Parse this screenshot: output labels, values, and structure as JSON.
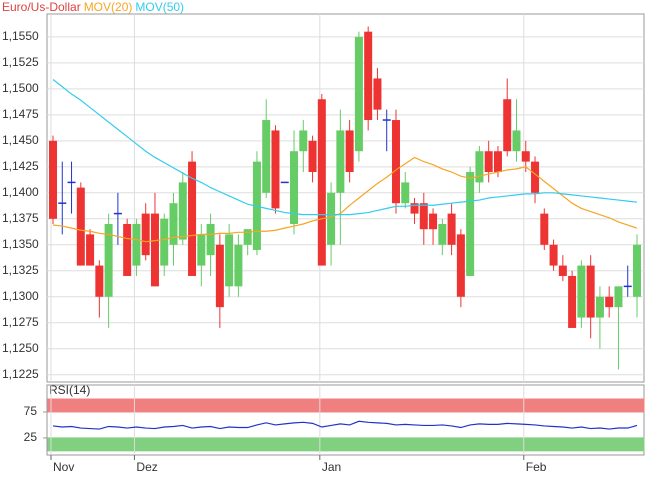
{
  "chart_data": [
    {
      "type": "candlestick",
      "title": "Euro/Us-Dollar",
      "title_color": "#e04040",
      "categories": [
        "Nov",
        null,
        null,
        null,
        null,
        null,
        null,
        null,
        null,
        "Dez",
        null,
        null,
        null,
        null,
        null,
        null,
        null,
        null,
        null,
        null,
        null,
        null,
        null,
        null,
        null,
        null,
        null,
        null,
        null,
        "Jan",
        null,
        null,
        null,
        null,
        null,
        null,
        null,
        null,
        null,
        null,
        null,
        null,
        null,
        null,
        null,
        null,
        null,
        null,
        null,
        null,
        null,
        "Feb",
        null,
        null,
        null,
        null,
        null,
        null,
        null,
        null,
        null,
        null,
        null,
        null
      ],
      "open": [
        1.145,
        1.139,
        1.141,
        1.1405,
        1.136,
        1.133,
        1.13,
        1.138,
        1.137,
        1.133,
        1.138,
        1.138,
        1.133,
        1.135,
        1.1355,
        1.143,
        1.133,
        1.134,
        1.135,
        1.131,
        1.131,
        1.135,
        1.1345,
        1.14,
        1.146,
        1.141,
        1.137,
        1.144,
        1.145,
        1.149,
        1.135,
        1.14,
        1.146,
        1.144,
        1.1555,
        1.151,
        1.147,
        1.147,
        1.139,
        1.139,
        1.139,
        1.138,
        1.135,
        1.138,
        1.136,
        1.132,
        1.141,
        1.144,
        1.144,
        1.149,
        1.144,
        1.144,
        1.143,
        1.138,
        1.135,
        1.133,
        1.132,
        1.128,
        1.133,
        1.128,
        1.13,
        1.129,
        1.131,
        1.13
      ],
      "high": [
        1.1455,
        1.143,
        1.143,
        1.141,
        1.1365,
        1.1335,
        1.138,
        1.14,
        1.1375,
        1.1375,
        1.139,
        1.14,
        1.138,
        1.14,
        1.142,
        1.144,
        1.137,
        1.138,
        1.136,
        1.137,
        1.136,
        1.1365,
        1.144,
        1.149,
        1.1465,
        1.141,
        1.146,
        1.147,
        1.1455,
        1.1495,
        1.141,
        1.148,
        1.147,
        1.1555,
        1.156,
        1.152,
        1.148,
        1.148,
        1.142,
        1.1395,
        1.14,
        1.1385,
        1.1375,
        1.139,
        1.1365,
        1.1425,
        1.1445,
        1.145,
        1.1445,
        1.151,
        1.149,
        1.145,
        1.1435,
        1.1385,
        1.1355,
        1.134,
        1.1325,
        1.1335,
        1.134,
        1.131,
        1.131,
        1.131,
        1.133,
        1.136
      ],
      "low": [
        1.137,
        1.136,
        1.138,
        1.133,
        1.133,
        1.128,
        1.127,
        1.135,
        1.132,
        1.132,
        1.1335,
        1.131,
        1.132,
        1.133,
        1.135,
        1.132,
        1.131,
        1.132,
        1.127,
        1.13,
        1.13,
        1.134,
        1.134,
        1.1395,
        1.138,
        1.141,
        1.136,
        1.142,
        1.141,
        1.133,
        1.133,
        1.135,
        1.141,
        1.143,
        1.146,
        1.147,
        1.144,
        1.138,
        1.1385,
        1.137,
        1.135,
        1.135,
        1.134,
        1.134,
        1.129,
        1.132,
        1.14,
        1.141,
        1.1415,
        1.1435,
        1.143,
        1.142,
        1.139,
        1.1345,
        1.1325,
        1.1315,
        1.127,
        1.127,
        1.126,
        1.125,
        1.128,
        1.123,
        1.13,
        1.128
      ],
      "close": [
        1.1375,
        1.139,
        1.141,
        1.133,
        1.133,
        1.13,
        1.137,
        1.138,
        1.132,
        1.137,
        1.134,
        1.131,
        1.1375,
        1.139,
        1.141,
        1.132,
        1.136,
        1.137,
        1.129,
        1.136,
        1.135,
        1.1365,
        1.143,
        1.147,
        1.1385,
        1.141,
        1.144,
        1.146,
        1.142,
        1.133,
        1.14,
        1.146,
        1.142,
        1.155,
        1.147,
        1.148,
        1.147,
        1.139,
        1.141,
        1.138,
        1.1365,
        1.1365,
        1.137,
        1.135,
        1.13,
        1.142,
        1.144,
        1.142,
        1.142,
        1.144,
        1.146,
        1.143,
        1.14,
        1.135,
        1.133,
        1.132,
        1.127,
        1.133,
        1.128,
        1.13,
        1.129,
        1.131,
        1.131,
        1.135
      ],
      "up_color": "#66cc66",
      "down_color": "#ee3333",
      "flat_color": "#2233cc",
      "series": [
        {
          "name": "MOV(20)",
          "color": "#f5a623",
          "values": [
            1.1369,
            1.1368,
            1.1366,
            1.1364,
            1.1363,
            1.1361,
            1.136,
            1.1358,
            1.1356,
            1.1355,
            1.1353,
            1.1354,
            1.1355,
            1.1357,
            1.1358,
            1.1359,
            1.136,
            1.136,
            1.1361,
            1.1361,
            1.1362,
            1.1362,
            1.1363,
            1.1363,
            1.1364,
            1.1366,
            1.1368,
            1.137,
            1.1373,
            1.1375,
            1.1377,
            1.138,
            1.1388,
            1.1395,
            1.1402,
            1.1409,
            1.1415,
            1.1422,
            1.1428,
            1.1434,
            1.143,
            1.1427,
            1.1423,
            1.142,
            1.1416,
            1.1414,
            1.1416,
            1.1418,
            1.142,
            1.1422,
            1.1423,
            1.1425,
            1.1418,
            1.1411,
            1.1404,
            1.1397,
            1.139,
            1.1385,
            1.1382,
            1.1379,
            1.1376,
            1.1372,
            1.1369,
            1.1366
          ]
        },
        {
          "name": "MOV(50)",
          "color": "#33ccee",
          "values": [
            1.1509,
            1.1502,
            1.1495,
            1.1489,
            1.1482,
            1.1475,
            1.1468,
            1.1461,
            1.1454,
            1.1447,
            1.144,
            1.1434,
            1.1429,
            1.1424,
            1.1419,
            1.1414,
            1.141,
            1.1405,
            1.1401,
            1.1397,
            1.1393,
            1.1389,
            1.1387,
            1.1385,
            1.1383,
            1.1381,
            1.138,
            1.1379,
            1.1379,
            1.1379,
            1.1379,
            1.1379,
            1.1379,
            1.138,
            1.1381,
            1.1383,
            1.1385,
            1.1387,
            1.1387,
            1.1388,
            1.1388,
            1.1388,
            1.1389,
            1.139,
            1.1391,
            1.1392,
            1.1393,
            1.1395,
            1.1396,
            1.1397,
            1.1398,
            1.1399,
            1.1399,
            1.14,
            1.14,
            1.1399,
            1.1398,
            1.1397,
            1.1396,
            1.1395,
            1.1394,
            1.1393,
            1.1392,
            1.1391
          ]
        }
      ],
      "ylim": [
        1.1218,
        1.1572
      ],
      "yticks": [
        {
          "value": 1.1225,
          "label": "1,1225"
        },
        {
          "value": 1.125,
          "label": "1,1250"
        },
        {
          "value": 1.1275,
          "label": "1,1275"
        },
        {
          "value": 1.13,
          "label": "1,1300"
        },
        {
          "value": 1.1325,
          "label": "1,1325"
        },
        {
          "value": 1.135,
          "label": "1,1350"
        },
        {
          "value": 1.1375,
          "label": "1,1375"
        },
        {
          "value": 1.14,
          "label": "1,1400"
        },
        {
          "value": 1.1425,
          "label": "1,1425"
        },
        {
          "value": 1.145,
          "label": "1,1450"
        },
        {
          "value": 1.1475,
          "label": "1,1475"
        },
        {
          "value": 1.15,
          "label": "1,1500"
        },
        {
          "value": 1.1525,
          "label": "1,1525"
        },
        {
          "value": 1.155,
          "label": "1,1550"
        }
      ],
      "grid": true
    },
    {
      "type": "line",
      "title": "RSI(14)",
      "series": [
        {
          "name": "RSI(14)",
          "color": "#2233cc",
          "values": [
            48,
            46,
            47,
            44,
            43,
            42,
            47,
            46,
            44,
            46,
            44,
            43,
            46,
            47,
            49,
            44,
            46,
            47,
            43,
            46,
            45,
            45,
            50,
            54,
            50,
            52,
            54,
            55,
            53,
            46,
            49,
            52,
            50,
            57,
            55,
            54,
            53,
            50,
            51,
            50,
            49,
            49,
            50,
            48,
            45,
            50,
            52,
            51,
            51,
            53,
            52,
            51,
            50,
            48,
            47,
            46,
            44,
            46,
            43,
            44,
            42,
            44,
            44,
            49
          ]
        }
      ],
      "bands": [
        {
          "from": 75,
          "to": 100,
          "color": "#f08080"
        },
        {
          "from": 0,
          "to": 25,
          "color": "#80d080"
        }
      ],
      "ylim": [
        -8,
        127
      ],
      "yticks": [
        25,
        75
      ]
    }
  ]
}
